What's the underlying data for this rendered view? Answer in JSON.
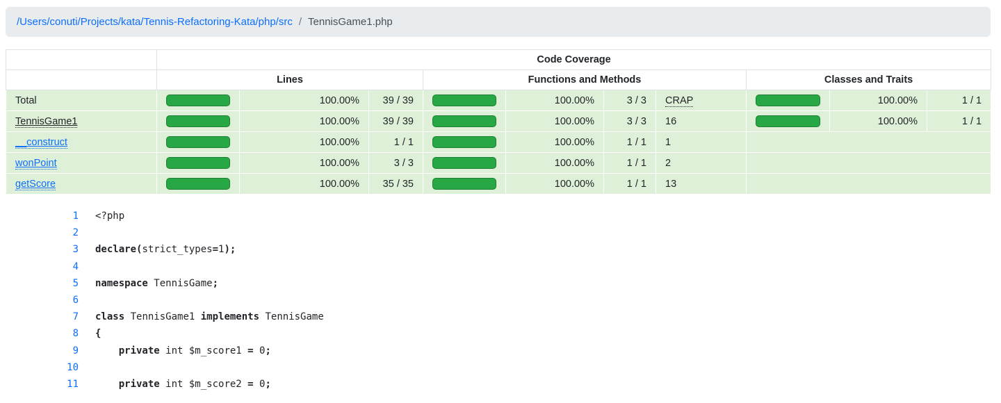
{
  "colors": {
    "link_blue": "#0d6efd",
    "bar_green": "#28a745",
    "bar_border": "#1e7e34",
    "covered_row_bg": "#dff0d8",
    "breadcrumb_bg": "#e9ecef"
  },
  "breadcrumb": {
    "path": "/Users/conuti/Projects/kata/Tennis-Refactoring-Kata/php/src",
    "separator": "/",
    "current": "TennisGame1.php"
  },
  "coverage_table": {
    "title": "Code Coverage",
    "groups": {
      "lines": "Lines",
      "functions": "Functions and Methods",
      "classes": "Classes and Traits"
    },
    "rows": [
      {
        "name": "Total",
        "lines": {
          "bar": 100,
          "pct": "100.00%",
          "ratio": "39 / 39"
        },
        "functions": {
          "bar": 100,
          "pct": "100.00%",
          "ratio": "3 / 3"
        },
        "crap": "CRAP",
        "classes": {
          "bar": 100,
          "pct": "100.00%",
          "ratio": "1 / 1"
        }
      },
      {
        "name": "TennisGame1",
        "lines": {
          "bar": 100,
          "pct": "100.00%",
          "ratio": "39 / 39"
        },
        "functions": {
          "bar": 100,
          "pct": "100.00%",
          "ratio": "3 / 3"
        },
        "crap": "16",
        "classes": {
          "bar": 100,
          "pct": "100.00%",
          "ratio": "1 / 1"
        }
      },
      {
        "name": "__construct",
        "lines": {
          "bar": 100,
          "pct": "100.00%",
          "ratio": "1 / 1"
        },
        "functions": {
          "bar": 100,
          "pct": "100.00%",
          "ratio": "1 / 1"
        },
        "crap": "1"
      },
      {
        "name": "wonPoint",
        "lines": {
          "bar": 100,
          "pct": "100.00%",
          "ratio": "3 / 3"
        },
        "functions": {
          "bar": 100,
          "pct": "100.00%",
          "ratio": "1 / 1"
        },
        "crap": "2"
      },
      {
        "name": "getScore",
        "lines": {
          "bar": 100,
          "pct": "100.00%",
          "ratio": "35 / 35"
        },
        "functions": {
          "bar": 100,
          "pct": "100.00%",
          "ratio": "1 / 1"
        },
        "crap": "13"
      }
    ]
  },
  "code": {
    "lines": [
      {
        "num": "1",
        "tokens": [
          {
            "t": "<?php",
            "c": "d"
          }
        ]
      },
      {
        "num": "2",
        "tokens": []
      },
      {
        "num": "3",
        "tokens": [
          {
            "t": "declare(",
            "c": "k"
          },
          {
            "t": "strict_types",
            "c": "d"
          },
          {
            "t": "=",
            "c": "k"
          },
          {
            "t": "1",
            "c": "d"
          },
          {
            "t": ");",
            "c": "k"
          }
        ]
      },
      {
        "num": "4",
        "tokens": []
      },
      {
        "num": "5",
        "tokens": [
          {
            "t": "namespace",
            "c": "k"
          },
          {
            "t": " TennisGame",
            "c": "d"
          },
          {
            "t": ";",
            "c": "k"
          }
        ]
      },
      {
        "num": "6",
        "tokens": []
      },
      {
        "num": "7",
        "tokens": [
          {
            "t": "class",
            "c": "k"
          },
          {
            "t": " TennisGame1 ",
            "c": "d"
          },
          {
            "t": "implements",
            "c": "k"
          },
          {
            "t": " TennisGame",
            "c": "d"
          }
        ]
      },
      {
        "num": "8",
        "tokens": [
          {
            "t": "{",
            "c": "k"
          }
        ]
      },
      {
        "num": "9",
        "tokens": [
          {
            "t": "    ",
            "c": "d"
          },
          {
            "t": "private",
            "c": "k"
          },
          {
            "t": " int $m_score1 ",
            "c": "d"
          },
          {
            "t": "=",
            "c": "k"
          },
          {
            "t": " 0",
            "c": "d"
          },
          {
            "t": ";",
            "c": "k"
          }
        ]
      },
      {
        "num": "10",
        "tokens": []
      },
      {
        "num": "11",
        "tokens": [
          {
            "t": "    ",
            "c": "d"
          },
          {
            "t": "private",
            "c": "k"
          },
          {
            "t": " int $m_score2 ",
            "c": "d"
          },
          {
            "t": "=",
            "c": "k"
          },
          {
            "t": " 0",
            "c": "d"
          },
          {
            "t": ";",
            "c": "k"
          }
        ]
      }
    ]
  }
}
